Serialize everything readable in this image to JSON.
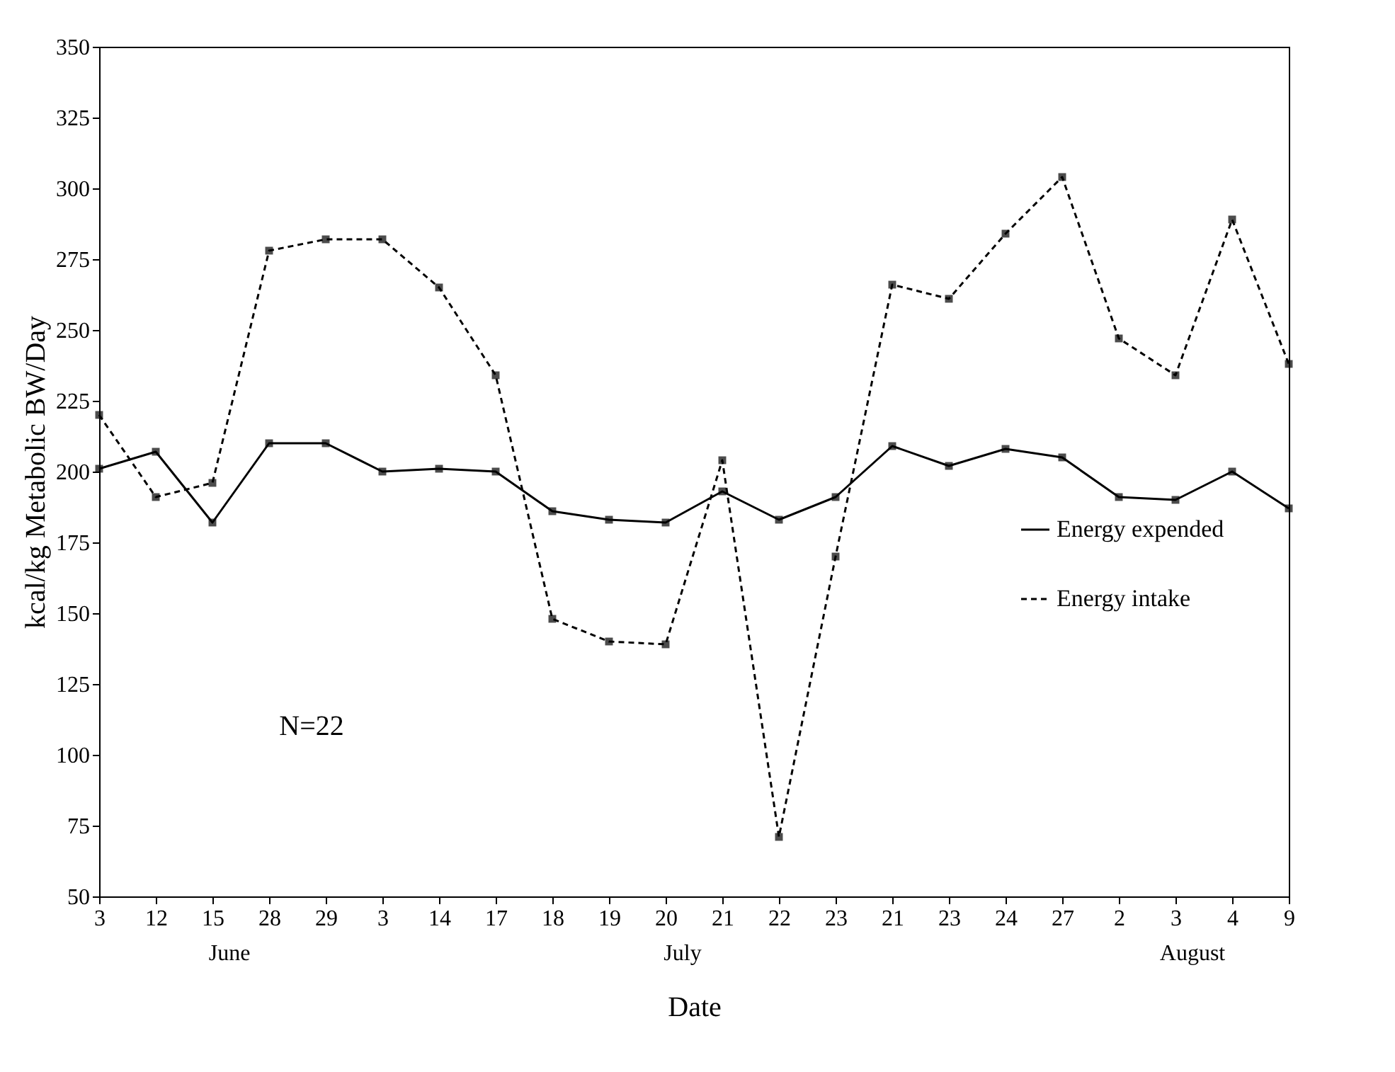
{
  "chart_data": {
    "type": "line",
    "xlabel": "Date",
    "ylabel": "kcal/kg Metabolic BW/Day",
    "categories": [
      "3",
      "12",
      "15",
      "28",
      "29",
      "3",
      "14",
      "17",
      "18",
      "19",
      "20",
      "21",
      "22",
      "23",
      "21",
      "23",
      "24",
      "27",
      "2",
      "3",
      "4",
      "9"
    ],
    "series": [
      {
        "name": "Energy expended",
        "color": "#000000",
        "line_style": "solid",
        "values": [
          201,
          207,
          182,
          210,
          210,
          200,
          201,
          200,
          186,
          183,
          182,
          193,
          183,
          191,
          209,
          202,
          208,
          205,
          191,
          190,
          200,
          187
        ]
      },
      {
        "name": "Energy intake",
        "color": "#000000",
        "line_style": "dashed",
        "values": [
          220,
          191,
          196,
          278,
          282,
          282,
          265,
          234,
          148,
          140,
          139,
          204,
          71,
          170,
          266,
          261,
          284,
          304,
          247,
          234,
          289,
          238
        ]
      }
    ],
    "ylim": [
      50,
      350
    ],
    "yticks": [
      50,
      75,
      100,
      125,
      150,
      175,
      200,
      225,
      250,
      275,
      300,
      325,
      350
    ],
    "grid": false,
    "legend": "right",
    "marker": "square",
    "annotations": [
      "N=22",
      "June",
      "July",
      "August"
    ]
  }
}
